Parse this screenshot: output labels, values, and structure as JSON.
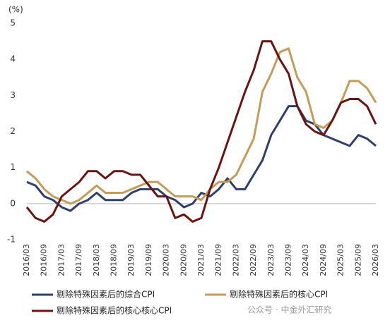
{
  "chart_data": {
    "type": "line",
    "y_unit_label": "(%)",
    "categories": [
      "2016/03",
      null,
      "2016/09",
      null,
      "2017/03",
      null,
      "2017/09",
      null,
      "2018/03",
      null,
      "2018/09",
      null,
      "2019/03",
      null,
      "2019/09",
      null,
      "2020/03",
      null,
      "2020/09",
      null,
      "2021/03",
      null,
      "2021/09",
      null,
      "2022/03",
      null,
      "2022/09",
      null,
      "2023/03",
      null,
      "2023/09",
      null,
      "2024/03",
      null,
      "2024/09",
      null,
      "2025/03",
      null,
      "2025/09",
      null,
      "2026/03"
    ],
    "series": [
      {
        "name": "剔除特殊因素后的综合CPI",
        "color": "#2e3f6e",
        "values": [
          0.6,
          0.5,
          0.2,
          0.1,
          -0.1,
          -0.2,
          0.0,
          0.1,
          0.3,
          0.1,
          0.1,
          0.1,
          0.3,
          0.4,
          0.4,
          0.4,
          0.2,
          0.1,
          -0.1,
          0.0,
          0.3,
          0.2,
          0.4,
          0.7,
          0.4,
          0.4,
          0.8,
          1.2,
          1.9,
          2.3,
          2.7,
          2.7,
          2.3,
          2.2,
          1.9,
          1.8,
          1.7,
          1.6,
          1.9,
          1.8,
          1.6
        ]
      },
      {
        "name": "剔除特殊因素后的核心CPI",
        "color": "#c59b57",
        "values": [
          0.9,
          0.7,
          0.4,
          0.2,
          0.1,
          0.0,
          0.1,
          0.3,
          0.5,
          0.3,
          0.3,
          0.3,
          0.4,
          0.5,
          0.6,
          0.6,
          0.4,
          0.2,
          0.2,
          0.2,
          0.1,
          0.4,
          0.6,
          0.6,
          0.8,
          1.3,
          1.8,
          3.1,
          3.6,
          4.2,
          4.3,
          3.5,
          3.1,
          2.2,
          2.1,
          2.3,
          2.8,
          3.4,
          3.4,
          3.2,
          2.8
        ]
      },
      {
        "name": "剔除特殊因素后的核心核心CPI",
        "color": "#6b1410",
        "values": [
          -0.1,
          -0.4,
          -0.5,
          -0.3,
          0.2,
          0.4,
          0.6,
          0.9,
          0.9,
          0.7,
          0.9,
          0.9,
          0.8,
          0.8,
          0.5,
          0.2,
          0.2,
          -0.4,
          -0.3,
          -0.5,
          -0.4,
          0.4,
          1.0,
          1.7,
          2.4,
          3.1,
          3.7,
          4.5,
          4.5,
          4.0,
          3.6,
          2.7,
          2.2,
          2.0,
          1.9,
          2.3,
          2.8,
          2.9,
          2.9,
          2.7,
          2.2
        ]
      }
    ],
    "ylim": [
      -1,
      5
    ],
    "yticks": [
      -1,
      0,
      1,
      2,
      3,
      4,
      5
    ],
    "grid": false,
    "watermark": "公众号 · 中金外汇研究"
  }
}
